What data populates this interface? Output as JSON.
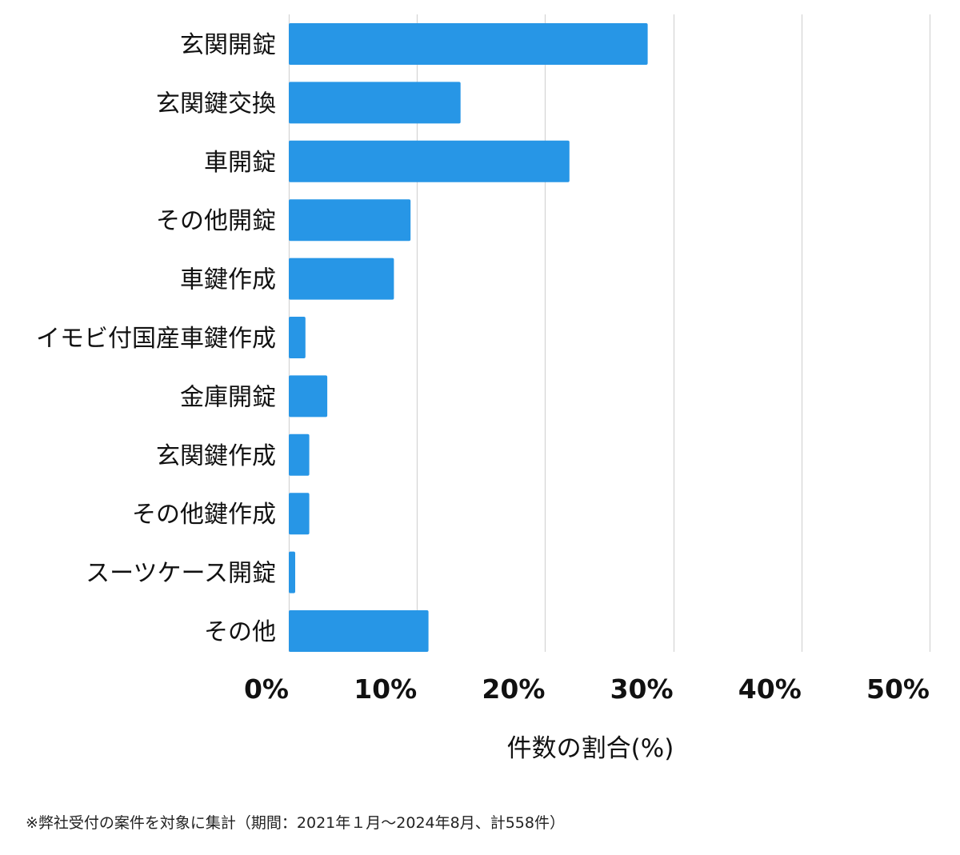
{
  "chart_data": {
    "type": "bar",
    "orientation": "horizontal",
    "categories": [
      "玄関開錠",
      "玄関鍵交換",
      "車開錠",
      "その他開錠",
      "車鍵作成",
      "イモビ付国産車鍵作成",
      "金庫開錠",
      "玄関鍵作成",
      "その他鍵作成",
      "スーツケース開錠",
      "その他"
    ],
    "values": [
      28.0,
      13.4,
      21.9,
      9.5,
      8.2,
      1.3,
      3.0,
      1.6,
      1.6,
      0.5,
      10.9
    ],
    "xlim": [
      0,
      50
    ],
    "x_ticks": [
      0,
      10,
      20,
      30,
      40,
      50
    ],
    "x_tick_labels": [
      "0%",
      "10%",
      "20%",
      "30%",
      "40%",
      "50%"
    ],
    "xlabel": "件数の割合(%)",
    "ylabel": "",
    "title": "",
    "grid": "vertical",
    "bar_color": "#2796e6",
    "grid_color": "#d4d4d4"
  },
  "footnote": "※弊社受付の案件を対象に集計（期間：2021年１月～2024年8月、計558件）"
}
